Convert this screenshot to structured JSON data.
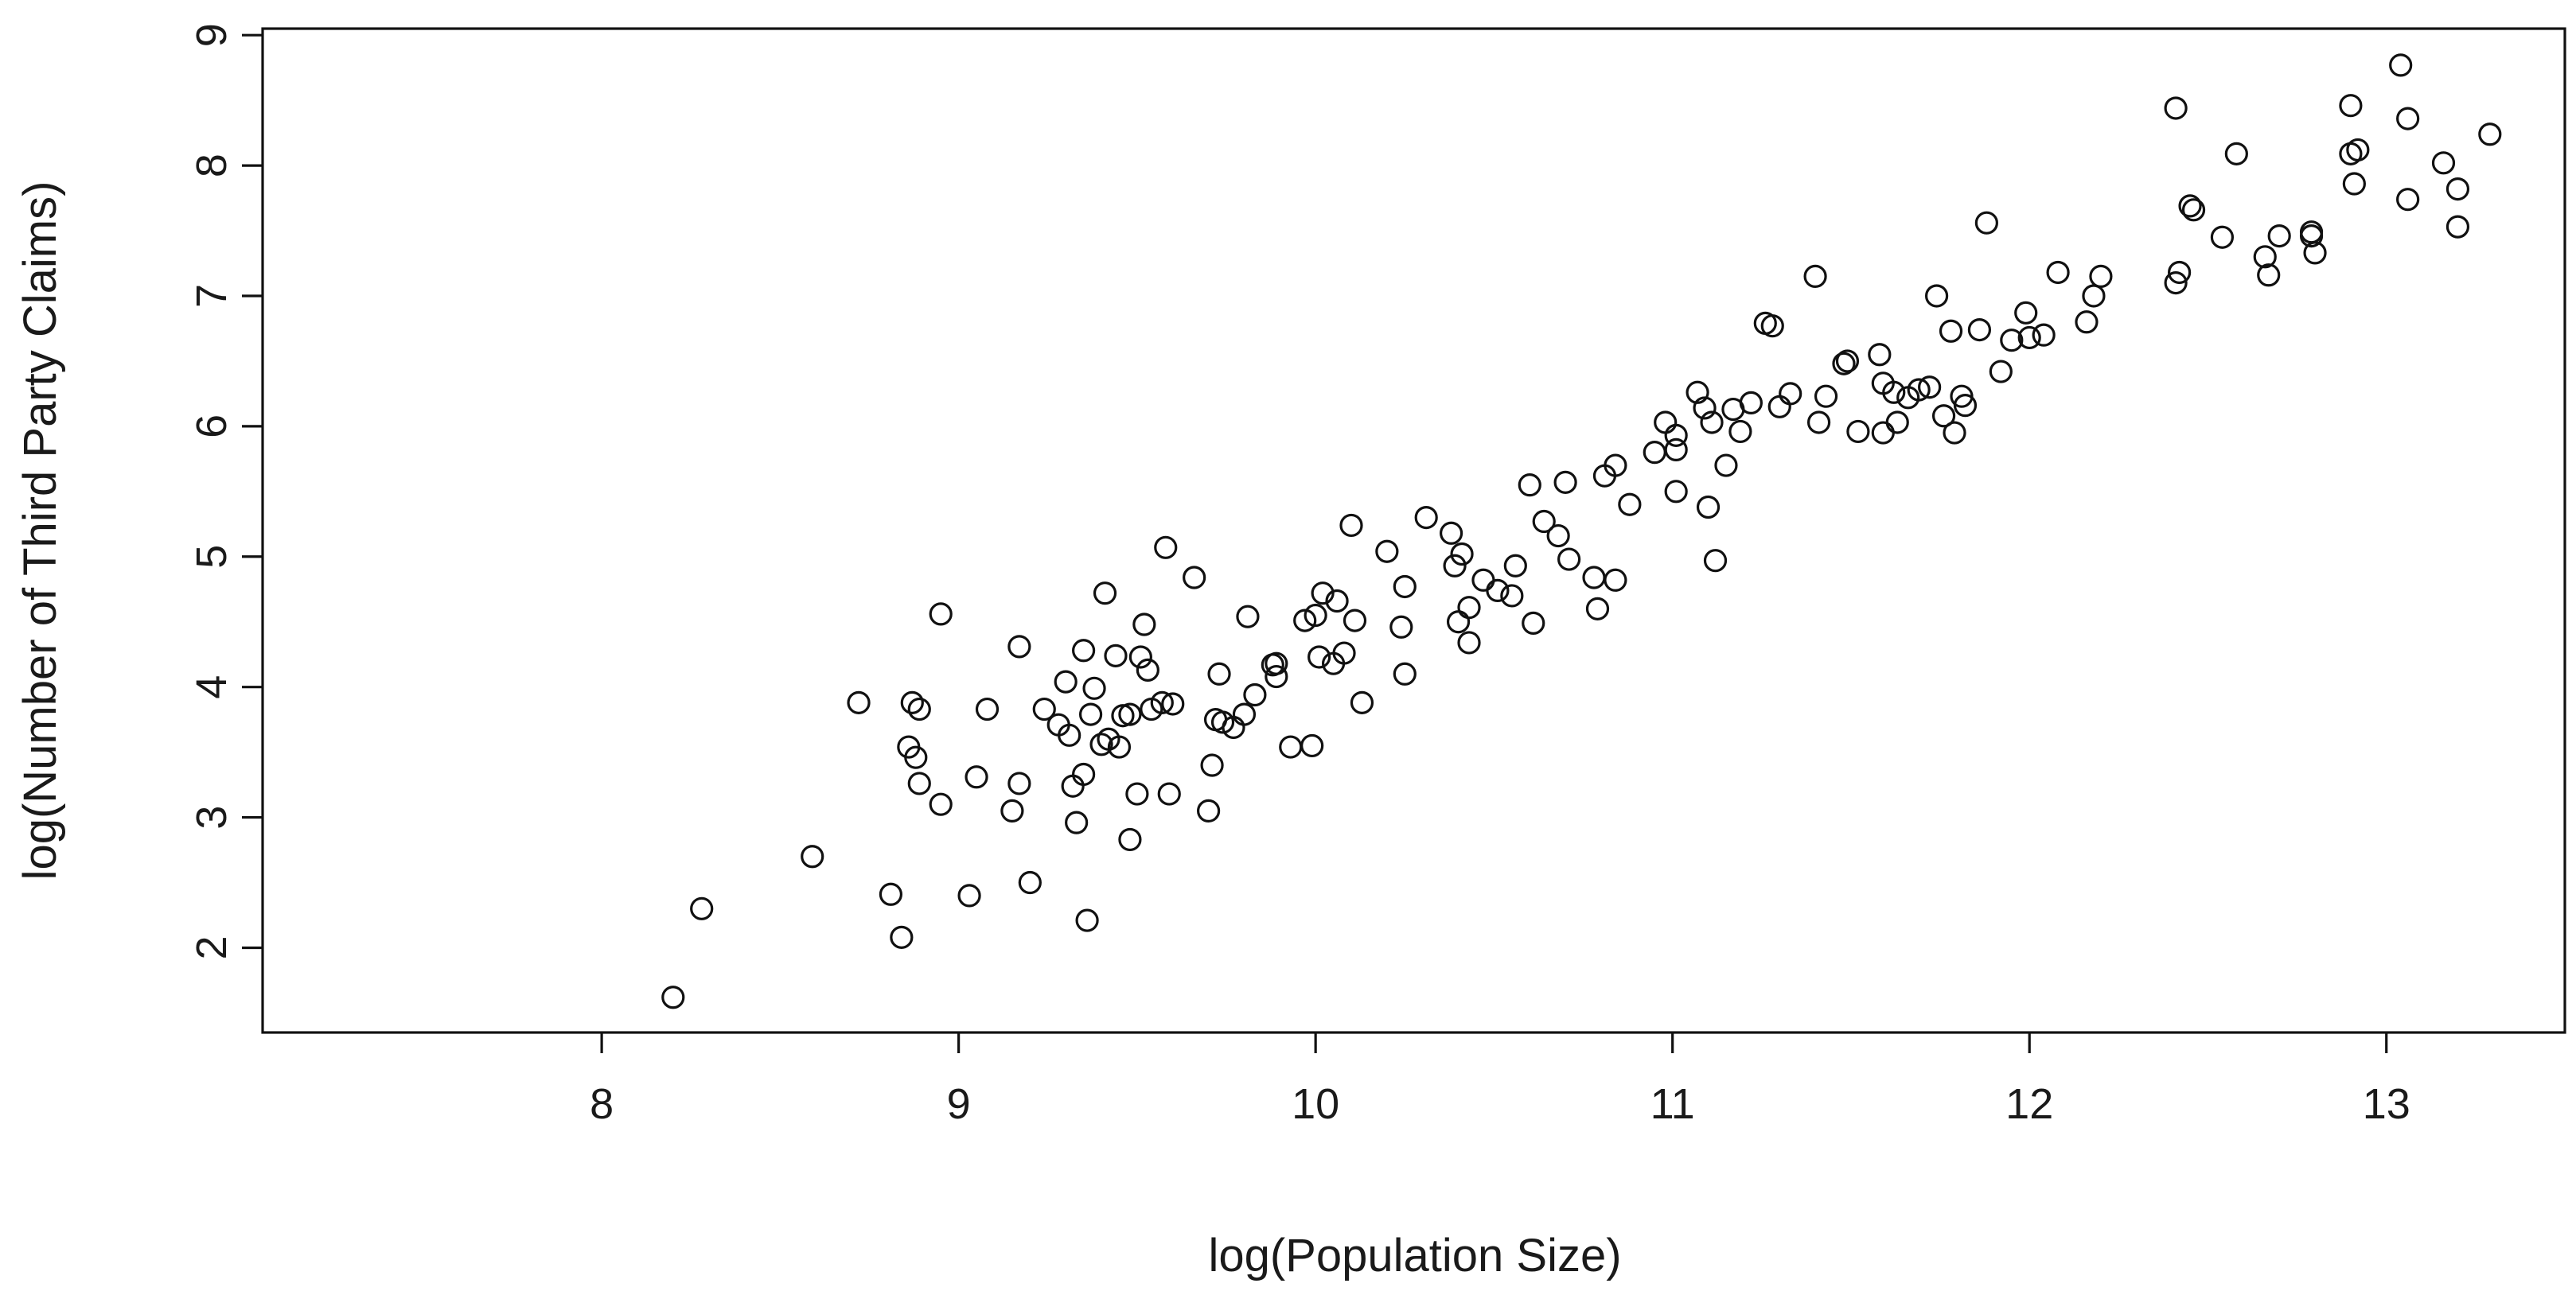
{
  "chart_data": {
    "type": "scatter",
    "title": "",
    "xlabel": "log(Population Size)",
    "ylabel": "log(Number of Third Party Claims)",
    "xlim": [
      7.05,
      13.5
    ],
    "ylim": [
      1.35,
      9.05
    ],
    "xticks": [
      "8",
      "9",
      "10",
      "11",
      "12",
      "13"
    ],
    "yticks": [
      "2",
      "3",
      "4",
      "5",
      "6",
      "7",
      "8",
      "9"
    ],
    "marker": "open-circle",
    "color": "#111111",
    "points": [
      [
        8.2,
        1.62
      ],
      [
        8.28,
        2.3
      ],
      [
        8.59,
        2.7
      ],
      [
        8.72,
        3.88
      ],
      [
        8.81,
        2.41
      ],
      [
        8.84,
        2.08
      ],
      [
        8.86,
        3.54
      ],
      [
        8.87,
        3.88
      ],
      [
        8.88,
        3.46
      ],
      [
        8.89,
        3.83
      ],
      [
        8.89,
        3.26
      ],
      [
        8.95,
        4.56
      ],
      [
        8.95,
        3.1
      ],
      [
        9.03,
        2.4
      ],
      [
        9.05,
        3.31
      ],
      [
        9.08,
        3.83
      ],
      [
        9.15,
        3.05
      ],
      [
        9.17,
        4.31
      ],
      [
        9.17,
        3.26
      ],
      [
        9.2,
        2.5
      ],
      [
        9.24,
        3.83
      ],
      [
        9.28,
        3.71
      ],
      [
        9.3,
        4.04
      ],
      [
        9.31,
        3.63
      ],
      [
        9.32,
        3.24
      ],
      [
        9.33,
        2.96
      ],
      [
        9.35,
        3.33
      ],
      [
        9.35,
        4.28
      ],
      [
        9.36,
        2.21
      ],
      [
        9.37,
        3.79
      ],
      [
        9.38,
        3.99
      ],
      [
        9.4,
        3.56
      ],
      [
        9.41,
        4.72
      ],
      [
        9.42,
        3.6
      ],
      [
        9.44,
        4.24
      ],
      [
        9.45,
        3.54
      ],
      [
        9.46,
        3.78
      ],
      [
        9.48,
        3.79
      ],
      [
        9.48,
        2.83
      ],
      [
        9.5,
        3.18
      ],
      [
        9.51,
        4.23
      ],
      [
        9.52,
        4.48
      ],
      [
        9.53,
        4.13
      ],
      [
        9.54,
        3.83
      ],
      [
        9.57,
        3.88
      ],
      [
        9.58,
        5.07
      ],
      [
        9.59,
        3.18
      ],
      [
        9.6,
        3.87
      ],
      [
        9.66,
        4.84
      ],
      [
        9.7,
        3.05
      ],
      [
        9.71,
        3.4
      ],
      [
        9.72,
        3.75
      ],
      [
        9.73,
        4.1
      ],
      [
        9.74,
        3.73
      ],
      [
        9.77,
        3.69
      ],
      [
        9.8,
        3.79
      ],
      [
        9.81,
        4.54
      ],
      [
        9.83,
        3.94
      ],
      [
        9.88,
        4.17
      ],
      [
        9.89,
        4.08
      ],
      [
        9.89,
        4.18
      ],
      [
        9.93,
        3.54
      ],
      [
        9.97,
        4.51
      ],
      [
        9.99,
        3.55
      ],
      [
        10.0,
        4.55
      ],
      [
        10.01,
        4.23
      ],
      [
        10.02,
        4.72
      ],
      [
        10.05,
        4.18
      ],
      [
        10.06,
        4.66
      ],
      [
        10.08,
        4.26
      ],
      [
        10.1,
        5.24
      ],
      [
        10.11,
        4.51
      ],
      [
        10.13,
        3.88
      ],
      [
        10.2,
        5.04
      ],
      [
        10.24,
        4.46
      ],
      [
        10.25,
        4.77
      ],
      [
        10.25,
        4.1
      ],
      [
        10.31,
        5.3
      ],
      [
        10.38,
        5.18
      ],
      [
        10.39,
        4.93
      ],
      [
        10.4,
        4.5
      ],
      [
        10.41,
        5.02
      ],
      [
        10.43,
        4.61
      ],
      [
        10.43,
        4.34
      ],
      [
        10.47,
        4.82
      ],
      [
        10.51,
        4.74
      ],
      [
        10.55,
        4.7
      ],
      [
        10.56,
        4.93
      ],
      [
        10.6,
        5.55
      ],
      [
        10.61,
        4.49
      ],
      [
        10.64,
        5.27
      ],
      [
        10.68,
        5.16
      ],
      [
        10.7,
        5.57
      ],
      [
        10.71,
        4.98
      ],
      [
        10.78,
        4.84
      ],
      [
        10.79,
        4.6
      ],
      [
        10.81,
        5.62
      ],
      [
        10.84,
        5.7
      ],
      [
        10.84,
        4.82
      ],
      [
        10.88,
        5.4
      ],
      [
        10.95,
        5.8
      ],
      [
        10.98,
        6.03
      ],
      [
        11.01,
        5.82
      ],
      [
        11.01,
        5.93
      ],
      [
        11.01,
        5.5
      ],
      [
        11.07,
        6.26
      ],
      [
        11.09,
        6.14
      ],
      [
        11.1,
        5.38
      ],
      [
        11.11,
        6.03
      ],
      [
        11.12,
        4.97
      ],
      [
        11.15,
        5.7
      ],
      [
        11.17,
        6.13
      ],
      [
        11.19,
        5.96
      ],
      [
        11.22,
        6.18
      ],
      [
        11.26,
        6.79
      ],
      [
        11.28,
        6.77
      ],
      [
        11.3,
        6.15
      ],
      [
        11.33,
        6.25
      ],
      [
        11.4,
        7.15
      ],
      [
        11.41,
        6.03
      ],
      [
        11.43,
        6.23
      ],
      [
        11.48,
        6.48
      ],
      [
        11.49,
        6.5
      ],
      [
        11.52,
        5.96
      ],
      [
        11.58,
        6.55
      ],
      [
        11.59,
        6.33
      ],
      [
        11.59,
        5.95
      ],
      [
        11.62,
        6.26
      ],
      [
        11.63,
        6.03
      ],
      [
        11.66,
        6.22
      ],
      [
        11.69,
        6.28
      ],
      [
        11.72,
        6.3
      ],
      [
        11.74,
        7.0
      ],
      [
        11.76,
        6.08
      ],
      [
        11.78,
        6.73
      ],
      [
        11.79,
        5.95
      ],
      [
        11.81,
        6.23
      ],
      [
        11.82,
        6.16
      ],
      [
        11.86,
        6.74
      ],
      [
        11.88,
        7.56
      ],
      [
        11.92,
        6.42
      ],
      [
        11.95,
        6.66
      ],
      [
        11.99,
        6.87
      ],
      [
        12.0,
        6.68
      ],
      [
        12.04,
        6.7
      ],
      [
        12.08,
        7.18
      ],
      [
        12.16,
        6.8
      ],
      [
        12.18,
        7.0
      ],
      [
        12.2,
        7.15
      ],
      [
        12.41,
        8.44
      ],
      [
        12.41,
        7.1
      ],
      [
        12.42,
        7.18
      ],
      [
        12.45,
        7.69
      ],
      [
        12.46,
        7.66
      ],
      [
        12.54,
        7.45
      ],
      [
        12.58,
        8.09
      ],
      [
        12.66,
        7.3
      ],
      [
        12.67,
        7.16
      ],
      [
        12.7,
        7.46
      ],
      [
        12.79,
        7.49
      ],
      [
        12.79,
        7.46
      ],
      [
        12.8,
        7.33
      ],
      [
        12.9,
        8.09
      ],
      [
        12.9,
        8.46
      ],
      [
        12.91,
        7.86
      ],
      [
        12.92,
        8.12
      ],
      [
        13.04,
        8.77
      ],
      [
        13.06,
        8.36
      ],
      [
        13.06,
        7.74
      ],
      [
        13.16,
        8.02
      ],
      [
        13.2,
        7.82
      ],
      [
        13.2,
        7.53
      ],
      [
        13.29,
        8.24
      ]
    ]
  }
}
